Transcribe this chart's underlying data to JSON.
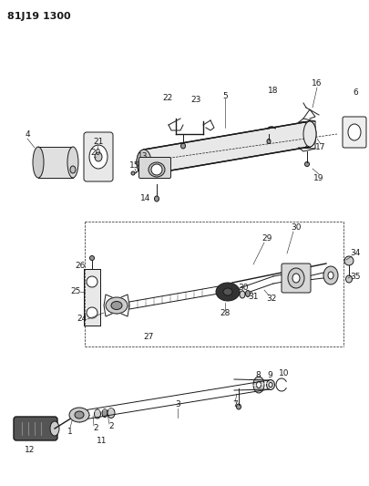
{
  "title": "81J19 1300",
  "bg_color": "#ffffff",
  "fig_width": 4.06,
  "fig_height": 5.33,
  "dpi": 100
}
